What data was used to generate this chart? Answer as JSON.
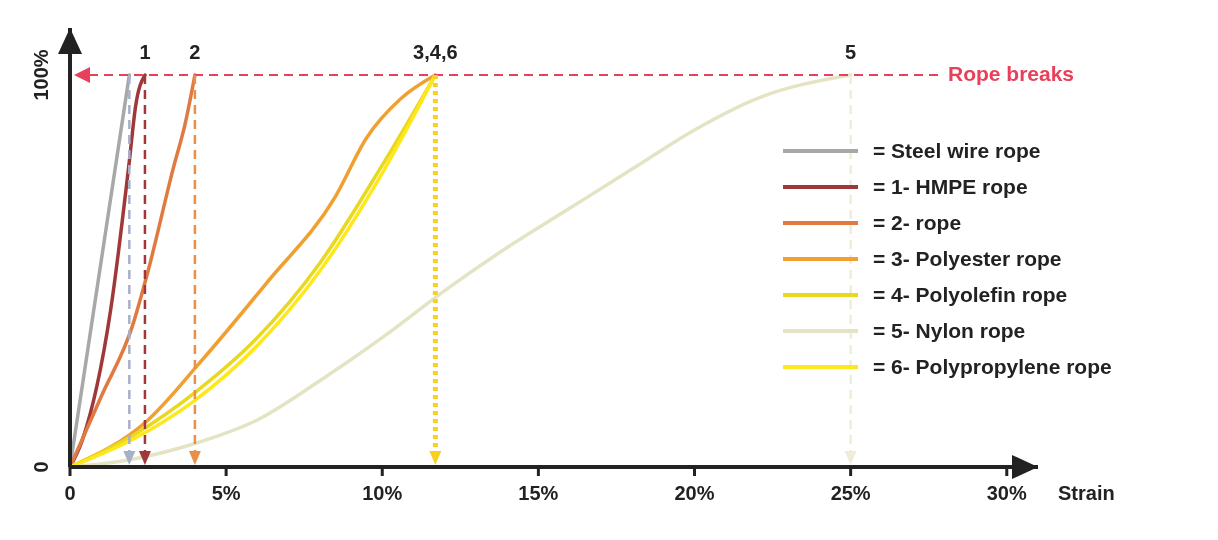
{
  "chart_data": {
    "type": "line",
    "xlabel": "Strain",
    "xlim": [
      0,
      31
    ],
    "ylim": [
      0,
      112
    ],
    "xticks": [
      {
        "value": 0,
        "label": "0"
      },
      {
        "value": 5,
        "label": "5%"
      },
      {
        "value": 10,
        "label": "10%"
      },
      {
        "value": 15,
        "label": "15%"
      },
      {
        "value": 20,
        "label": "20%"
      },
      {
        "value": 25,
        "label": "25%"
      },
      {
        "value": 30,
        "label": "30%"
      }
    ],
    "yticks": [
      {
        "value": 0,
        "label": "0"
      },
      {
        "value": 100,
        "label": "100%"
      }
    ],
    "grid": false,
    "legend": "right",
    "marker": "none",
    "line_style": "solid",
    "series": [
      {
        "name": "= Steel wire rope",
        "color": "#a8a8a8",
        "x": [
          0,
          1.9
        ],
        "values": [
          0,
          100
        ]
      },
      {
        "name": "= 1- HMPE rope",
        "color": "#a0383a",
        "x": [
          0,
          0.4,
          1.3,
          1.9,
          2.1,
          2.4
        ],
        "values": [
          0,
          7,
          40,
          78,
          92,
          100
        ]
      },
      {
        "name": "= 2- rope",
        "color": "#e07a40",
        "x": [
          0,
          1,
          2,
          2.5,
          3.3,
          3.7,
          4
        ],
        "values": [
          0,
          18,
          36,
          50,
          76,
          88,
          100
        ]
      },
      {
        "name": "= 3- Polyester rope",
        "color": "#f0a030",
        "x": [
          0,
          2.5,
          4.2,
          6.3,
          8.5,
          9.5,
          10.6,
          11.7
        ],
        "values": [
          0,
          12,
          27,
          47,
          69,
          84,
          94,
          100
        ]
      },
      {
        "name": "= 4- Polyolefin rope",
        "color": "#e8d820",
        "x": [
          0,
          2,
          4,
          6,
          8,
          10,
          11.7
        ],
        "values": [
          0,
          8,
          19,
          33,
          52,
          77,
          100
        ]
      },
      {
        "name": "= 5- Nylon rope",
        "color": "#e4e4c4",
        "x": [
          0,
          2,
          4,
          6,
          8,
          10,
          12,
          14,
          16,
          18,
          20,
          22,
          25
        ],
        "values": [
          0,
          2,
          6,
          12,
          22,
          33,
          45,
          56,
          66,
          76,
          86,
          94,
          100
        ]
      },
      {
        "name": "= 6- Polypropylene rope",
        "color": "#ffe81a",
        "x": [
          0,
          2,
          4,
          6,
          8,
          10,
          11.7
        ],
        "values": [
          0,
          7,
          17,
          31,
          50,
          75,
          100
        ]
      }
    ],
    "ref_lines": [
      {
        "axis": "y",
        "value": 100,
        "label": "Rope breaks",
        "color": "#e8405a",
        "line_style": "dashed"
      },
      {
        "axis": "x",
        "value": 1.9,
        "label": null,
        "color": "#a8b0c8",
        "line_style": "dashed"
      },
      {
        "axis": "x",
        "value": 2.4,
        "label": null,
        "color": "#a0383a",
        "line_style": "dashed"
      },
      {
        "axis": "x",
        "value": 4,
        "label": null,
        "color": "#e8904a",
        "line_style": "dashed"
      },
      {
        "axis": "x",
        "value": 11.7,
        "label": null,
        "color": "#f8d020",
        "line_style": "dotted"
      },
      {
        "axis": "x",
        "value": 25,
        "label": null,
        "color": "#eeeed8",
        "line_style": "dashed"
      }
    ],
    "annotations": [
      {
        "text": "1",
        "x": 2.4,
        "y": 100
      },
      {
        "text": "2",
        "x": 4,
        "y": 100
      },
      {
        "text": "3,4,6",
        "x": 11.7,
        "y": 100
      },
      {
        "text": "5",
        "x": 25,
        "y": 100
      }
    ]
  }
}
